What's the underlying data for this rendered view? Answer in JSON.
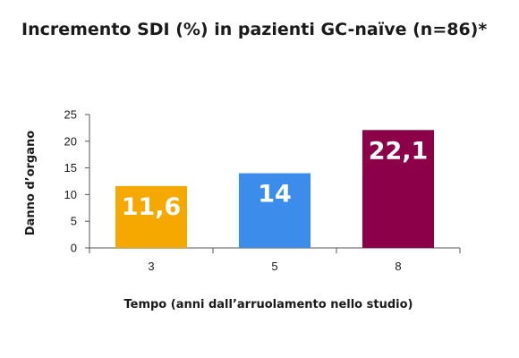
{
  "chart_data": {
    "type": "bar",
    "title": "Incremento SDI (%) in pazienti GC-naïve (n=86)*",
    "xlabel": "Tempo (anni dall’arruolamento nello studio)",
    "ylabel": "Danno d’organo",
    "categories": [
      "3",
      "5",
      "8"
    ],
    "values": [
      11.6,
      14,
      22.1
    ],
    "value_labels": [
      "11,6",
      "14",
      "22,1"
    ],
    "colors": [
      "#F5A800",
      "#3B8CEB",
      "#8C0049"
    ],
    "ylim": [
      0,
      25
    ],
    "yticks": [
      "0",
      "5",
      "10",
      "15",
      "20",
      "25"
    ],
    "grid": false,
    "legend": "none"
  }
}
